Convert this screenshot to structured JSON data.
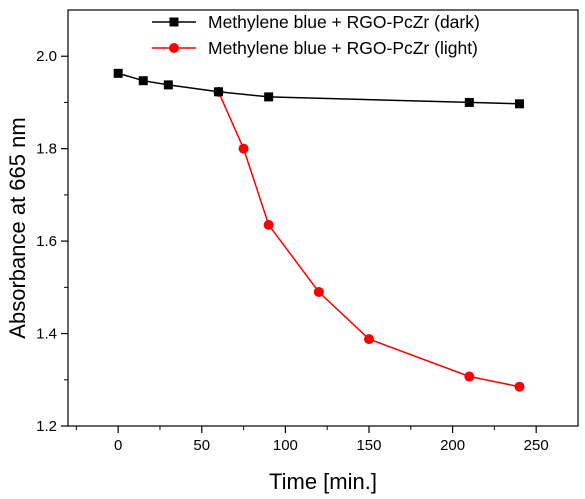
{
  "chart_data": {
    "type": "line",
    "xlabel": "Time [min.]",
    "ylabel": "Absorbance at 665 nm",
    "xlim": [
      -30,
      275
    ],
    "ylim": [
      1.2,
      2.1
    ],
    "xticks": [
      0,
      50,
      100,
      150,
      200,
      250
    ],
    "yticks": [
      1.2,
      1.4,
      1.6,
      1.8,
      2.0
    ],
    "x_tick_labels": [
      "0",
      "50",
      "100",
      "150",
      "200",
      "250"
    ],
    "y_tick_labels": [
      "1.2",
      "1.4",
      "1.6",
      "1.8",
      "2.0"
    ],
    "grid": false,
    "legend_position": "top-right",
    "series": [
      {
        "name": "Methylene blue + RGO-PcZr (dark)",
        "color": "#000000",
        "marker": "square",
        "x": [
          0,
          15,
          30,
          60,
          90,
          210,
          240
        ],
        "y": [
          1.963,
          1.947,
          1.938,
          1.923,
          1.912,
          1.9,
          1.897
        ]
      },
      {
        "name": "Methylene blue + RGO-PcZr (light)",
        "color": "#ff0000",
        "marker": "circle",
        "x": [
          60,
          75,
          90,
          120,
          150,
          210,
          240
        ],
        "y": [
          1.923,
          1.8,
          1.635,
          1.49,
          1.388,
          1.307,
          1.285
        ]
      }
    ]
  }
}
